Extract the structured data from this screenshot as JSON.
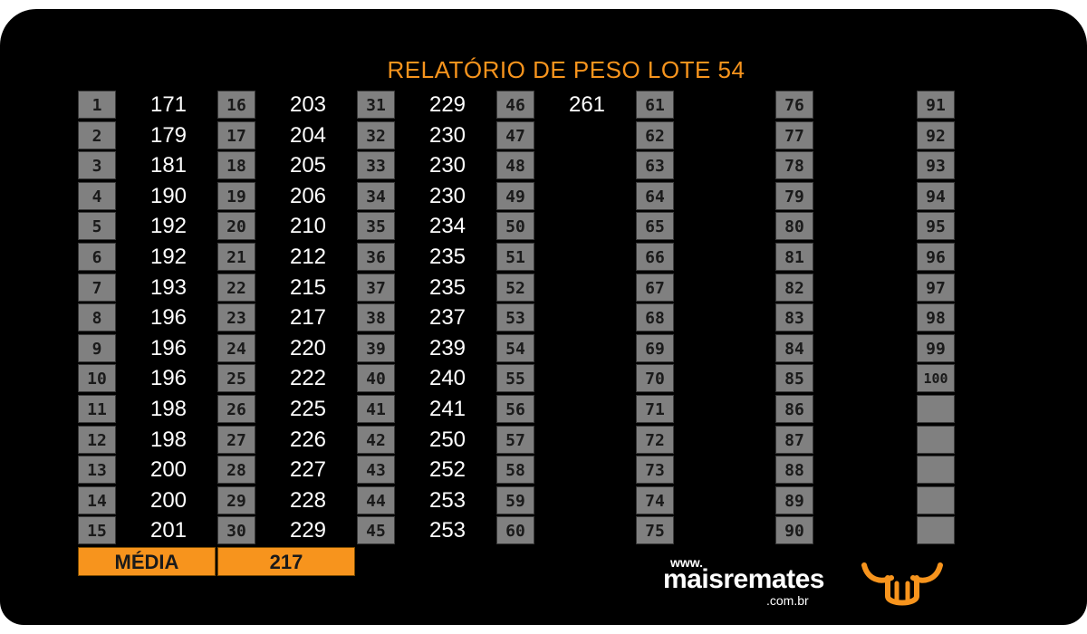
{
  "title": "RELATÓRIO DE PESO LOTE  54",
  "columns": [
    [
      {
        "n": "1",
        "v": "171"
      },
      {
        "n": "2",
        "v": "179"
      },
      {
        "n": "3",
        "v": "181"
      },
      {
        "n": "4",
        "v": "190"
      },
      {
        "n": "5",
        "v": "192"
      },
      {
        "n": "6",
        "v": "192"
      },
      {
        "n": "7",
        "v": "193"
      },
      {
        "n": "8",
        "v": "196"
      },
      {
        "n": "9",
        "v": "196"
      },
      {
        "n": "10",
        "v": "196"
      },
      {
        "n": "11",
        "v": "198"
      },
      {
        "n": "12",
        "v": "198"
      },
      {
        "n": "13",
        "v": "200"
      },
      {
        "n": "14",
        "v": "200"
      },
      {
        "n": "15",
        "v": "201"
      }
    ],
    [
      {
        "n": "16",
        "v": "203"
      },
      {
        "n": "17",
        "v": "204"
      },
      {
        "n": "18",
        "v": "205"
      },
      {
        "n": "19",
        "v": "206"
      },
      {
        "n": "20",
        "v": "210"
      },
      {
        "n": "21",
        "v": "212"
      },
      {
        "n": "22",
        "v": "215"
      },
      {
        "n": "23",
        "v": "217"
      },
      {
        "n": "24",
        "v": "220"
      },
      {
        "n": "25",
        "v": "222"
      },
      {
        "n": "26",
        "v": "225"
      },
      {
        "n": "27",
        "v": "226"
      },
      {
        "n": "28",
        "v": "227"
      },
      {
        "n": "29",
        "v": "228"
      },
      {
        "n": "30",
        "v": "229"
      }
    ],
    [
      {
        "n": "31",
        "v": "229"
      },
      {
        "n": "32",
        "v": "230"
      },
      {
        "n": "33",
        "v": "230"
      },
      {
        "n": "34",
        "v": "230"
      },
      {
        "n": "35",
        "v": "234"
      },
      {
        "n": "36",
        "v": "235"
      },
      {
        "n": "37",
        "v": "235"
      },
      {
        "n": "38",
        "v": "237"
      },
      {
        "n": "39",
        "v": "239"
      },
      {
        "n": "40",
        "v": "240"
      },
      {
        "n": "41",
        "v": "241"
      },
      {
        "n": "42",
        "v": "250"
      },
      {
        "n": "43",
        "v": "252"
      },
      {
        "n": "44",
        "v": "253"
      },
      {
        "n": "45",
        "v": "253"
      }
    ],
    [
      {
        "n": "46",
        "v": "261"
      },
      {
        "n": "47",
        "v": ""
      },
      {
        "n": "48",
        "v": ""
      },
      {
        "n": "49",
        "v": ""
      },
      {
        "n": "50",
        "v": ""
      },
      {
        "n": "51",
        "v": ""
      },
      {
        "n": "52",
        "v": ""
      },
      {
        "n": "53",
        "v": ""
      },
      {
        "n": "54",
        "v": ""
      },
      {
        "n": "55",
        "v": ""
      },
      {
        "n": "56",
        "v": ""
      },
      {
        "n": "57",
        "v": ""
      },
      {
        "n": "58",
        "v": ""
      },
      {
        "n": "59",
        "v": ""
      },
      {
        "n": "60",
        "v": ""
      }
    ],
    [
      {
        "n": "61",
        "v": ""
      },
      {
        "n": "62",
        "v": ""
      },
      {
        "n": "63",
        "v": ""
      },
      {
        "n": "64",
        "v": ""
      },
      {
        "n": "65",
        "v": ""
      },
      {
        "n": "66",
        "v": ""
      },
      {
        "n": "67",
        "v": ""
      },
      {
        "n": "68",
        "v": ""
      },
      {
        "n": "69",
        "v": ""
      },
      {
        "n": "70",
        "v": ""
      },
      {
        "n": "71",
        "v": ""
      },
      {
        "n": "72",
        "v": ""
      },
      {
        "n": "73",
        "v": ""
      },
      {
        "n": "74",
        "v": ""
      },
      {
        "n": "75",
        "v": ""
      }
    ],
    [
      {
        "n": "76",
        "v": ""
      },
      {
        "n": "77",
        "v": ""
      },
      {
        "n": "78",
        "v": ""
      },
      {
        "n": "79",
        "v": ""
      },
      {
        "n": "80",
        "v": ""
      },
      {
        "n": "81",
        "v": ""
      },
      {
        "n": "82",
        "v": ""
      },
      {
        "n": "83",
        "v": ""
      },
      {
        "n": "84",
        "v": ""
      },
      {
        "n": "85",
        "v": ""
      },
      {
        "n": "86",
        "v": ""
      },
      {
        "n": "87",
        "v": ""
      },
      {
        "n": "88",
        "v": ""
      },
      {
        "n": "89",
        "v": ""
      },
      {
        "n": "90",
        "v": ""
      }
    ],
    [
      {
        "n": "91",
        "v": ""
      },
      {
        "n": "92",
        "v": ""
      },
      {
        "n": "93",
        "v": ""
      },
      {
        "n": "94",
        "v": ""
      },
      {
        "n": "95",
        "v": ""
      },
      {
        "n": "96",
        "v": ""
      },
      {
        "n": "97",
        "v": ""
      },
      {
        "n": "98",
        "v": ""
      },
      {
        "n": "99",
        "v": ""
      },
      {
        "n": "100",
        "v": ""
      }
    ]
  ],
  "empty_slots": 5,
  "media": {
    "label": "MÉDIA",
    "value": "217"
  },
  "brand": {
    "www": "www.",
    "name": "maisremates",
    "domain": ".com.br"
  },
  "colors": {
    "accent": "#f7941d",
    "background": "#000000",
    "index_box": "#808080",
    "value_text": "#ffffff"
  },
  "icons": {
    "logo": "bull-horns-icon"
  }
}
